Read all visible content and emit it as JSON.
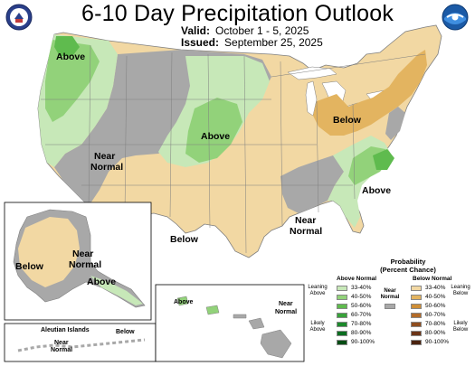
{
  "header": {
    "title": "6-10 Day Precipitation Outlook",
    "valid_label": "Valid:",
    "valid_value": "October 1 - 5, 2025",
    "issued_label": "Issued:",
    "issued_value": "September 25, 2025"
  },
  "logos": {
    "left": "usda-seal-icon",
    "right": "noaa-logo-icon"
  },
  "map_labels": {
    "pacific_nw": "Above",
    "central_plains": "Above",
    "great_basin_line1": "Near",
    "great_basin_line2": "Normal",
    "great_lakes": "Below",
    "carolinas": "Above",
    "texas": "Below",
    "gulf_line1": "Near",
    "gulf_line2": "Normal",
    "alaska_below": "Below",
    "alaska_near_line1": "Near",
    "alaska_near_line2": "Normal",
    "alaska_above": "Above",
    "aleutian_title": "Aleutian Islands",
    "aleutian_near_line1": "Near",
    "aleutian_near_line2": "Normal",
    "aleutian_below": "Below",
    "hawaii_above": "Above",
    "hawaii_near_line1": "Near",
    "hawaii_near_line2": "Normal"
  },
  "legend": {
    "title_line1": "Probability",
    "title_line2": "(Percent Chance)",
    "above_header": "Above Normal",
    "near_header_line1": "Near",
    "near_header_line2": "Normal",
    "below_header": "Below Normal",
    "leaning_above_line1": "Leaning",
    "leaning_above_line2": "Above",
    "likely_above_line1": "Likely",
    "likely_above_line2": "Above",
    "leaning_below_line1": "Leaning",
    "leaning_below_line2": "Below",
    "likely_below_line1": "Likely",
    "likely_below_line2": "Below",
    "above_rows": [
      "33-40%",
      "40-50%",
      "50-60%",
      "60-70%",
      "70-80%",
      "80-90%",
      "90-100%"
    ],
    "below_rows": [
      "33-40%",
      "40-50%",
      "50-60%",
      "60-70%",
      "70-80%",
      "80-90%",
      "90-100%"
    ],
    "above_colors": [
      "#c7e8b8",
      "#92d27a",
      "#5fbb4e",
      "#38a23a",
      "#1c8a2c",
      "#0b6e20",
      "#044c14"
    ],
    "below_colors": [
      "#f2d8a3",
      "#e3b460",
      "#cf8f37",
      "#b26b29",
      "#8f4d1f",
      "#6b3416",
      "#4a220e"
    ],
    "near_color": "#a8a8a8"
  },
  "colors": {
    "above_33_40": "#c7e8b8",
    "above_40_50": "#92d27a",
    "above_50_60": "#5fbb4e",
    "below_33_40": "#f2d8a3",
    "below_40_50": "#e3b460",
    "near_normal": "#a8a8a8",
    "water": "#ffffff",
    "border": "#7f7f7f"
  }
}
